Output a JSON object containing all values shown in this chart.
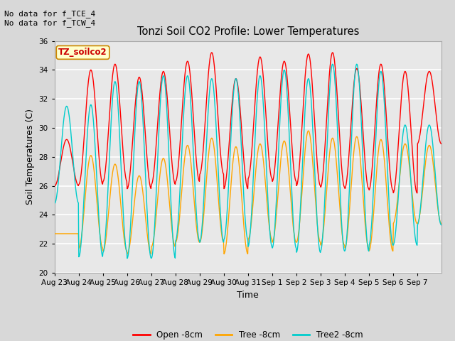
{
  "title": "Tonzi Soil CO2 Profile: Lower Temperatures",
  "xlabel": "Time",
  "ylabel": "Soil Temperatures (C)",
  "ylim": [
    20,
    36
  ],
  "yticks": [
    20,
    22,
    24,
    26,
    28,
    30,
    32,
    34,
    36
  ],
  "annotation_text": "No data for f_TCE_4\nNo data for f_TCW_4",
  "legend_label_text": "TZ_soilco2",
  "legend_entries": [
    "Open -8cm",
    "Tree -8cm",
    "Tree2 -8cm"
  ],
  "legend_colors": [
    "#ff0000",
    "#ffa500",
    "#00cccc"
  ],
  "line_colors": [
    "#ff0000",
    "#ffa500",
    "#00cccc"
  ],
  "background_color": "#d8d8d8",
  "plot_bg_color": "#e8e8e8",
  "grid_color": "#ffffff",
  "n_cycles": 16,
  "date_labels": [
    "Aug 23",
    "Aug 24",
    "Aug 25",
    "Aug 26",
    "Aug 27",
    "Aug 28",
    "Aug 29",
    "Aug 30",
    "Aug 31",
    "Sep 1",
    "Sep 2",
    "Sep 3",
    "Sep 4",
    "Sep 5",
    "Sep 6",
    "Sep 7"
  ],
  "open_max": [
    29.2,
    34.0,
    34.4,
    33.5,
    33.9,
    34.6,
    35.2,
    33.4,
    34.9,
    34.6,
    35.1,
    35.2,
    34.1,
    34.4,
    33.9,
    33.9
  ],
  "open_min": [
    26.0,
    26.1,
    26.3,
    25.8,
    26.1,
    26.3,
    26.8,
    25.8,
    26.5,
    26.3,
    26.0,
    25.9,
    25.8,
    25.7,
    25.5,
    28.9
  ],
  "tree_max": [
    22.7,
    28.1,
    27.5,
    26.7,
    27.9,
    28.8,
    29.3,
    28.7,
    28.9,
    29.1,
    29.8,
    29.3,
    29.4,
    29.2,
    28.9,
    28.8
  ],
  "tree_min": [
    22.7,
    21.7,
    21.5,
    21.3,
    21.8,
    22.1,
    22.1,
    21.3,
    22.3,
    22.1,
    22.1,
    21.9,
    21.7,
    21.5,
    23.4,
    23.4
  ],
  "tree2_max": [
    31.5,
    31.6,
    33.2,
    33.2,
    33.6,
    33.6,
    33.4,
    33.4,
    33.6,
    34.0,
    33.4,
    34.4,
    34.4,
    33.9,
    30.2,
    30.2
  ],
  "tree2_min": [
    24.8,
    21.1,
    21.4,
    21.0,
    21.0,
    22.2,
    22.1,
    22.3,
    21.8,
    21.7,
    21.4,
    21.5,
    21.5,
    21.9,
    21.9,
    23.3
  ],
  "figsize": [
    6.4,
    4.8
  ],
  "dpi": 100
}
